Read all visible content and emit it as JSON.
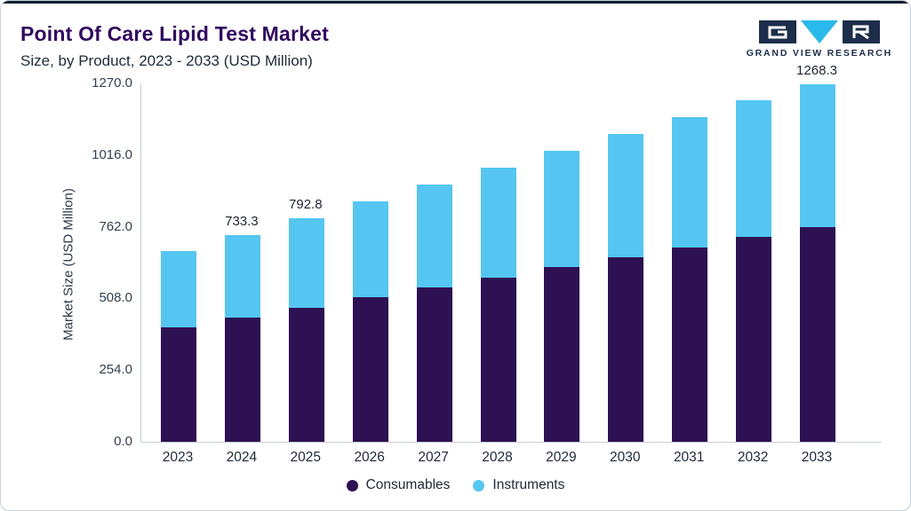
{
  "header": {
    "title": "Point Of Care Lipid Test Market",
    "subtitle": "Size, by Product, 2023 - 2033 (USD Million)"
  },
  "logo": {
    "text": "GRAND VIEW RESEARCH"
  },
  "colors": {
    "consumables": "#2D1152",
    "instruments": "#55C6F1",
    "title": "#320A5E",
    "axis_text": "#32404F",
    "axis_line": "#C6CFD6",
    "top_accent": "#101F33",
    "logo_dark": "#1C2E4A",
    "logo_cyan": "#29B9EA"
  },
  "chart_data": {
    "type": "bar",
    "stacked": true,
    "title": "Point Of Care Lipid Test Market Size, by Product, 2023 - 2033 (USD Million)",
    "ylabel": "Market Size (USD Million)",
    "categories": [
      "2023",
      "2024",
      "2025",
      "2026",
      "2027",
      "2028",
      "2029",
      "2030",
      "2031",
      "2032",
      "2033"
    ],
    "series": [
      {
        "name": "Consumables",
        "color": "#2D1152",
        "values": [
          406.4,
          440.0,
          475.7,
          511.3,
          547.0,
          582.7,
          618.3,
          653.9,
          689.6,
          725.3,
          761.0
        ]
      },
      {
        "name": "Instruments",
        "color": "#55C6F1",
        "values": [
          271.0,
          293.3,
          317.1,
          340.9,
          364.7,
          388.4,
          412.2,
          436.0,
          459.8,
          483.5,
          507.3
        ]
      }
    ],
    "totals": [
      677.4,
      733.3,
      792.8,
      852.2,
      911.7,
      971.1,
      1030.5,
      1089.9,
      1149.4,
      1208.8,
      1268.3
    ],
    "bar_labels": {
      "2024": "733.3",
      "2025": "792.8",
      "2033": "1268.3"
    },
    "yticks": [
      0.0,
      254.0,
      508.0,
      762.0,
      1016.0,
      1270.0
    ],
    "ylim": [
      0,
      1270
    ],
    "grid": false,
    "legend": [
      "Consumables",
      "Instruments"
    ],
    "legend_position": "bottom"
  }
}
